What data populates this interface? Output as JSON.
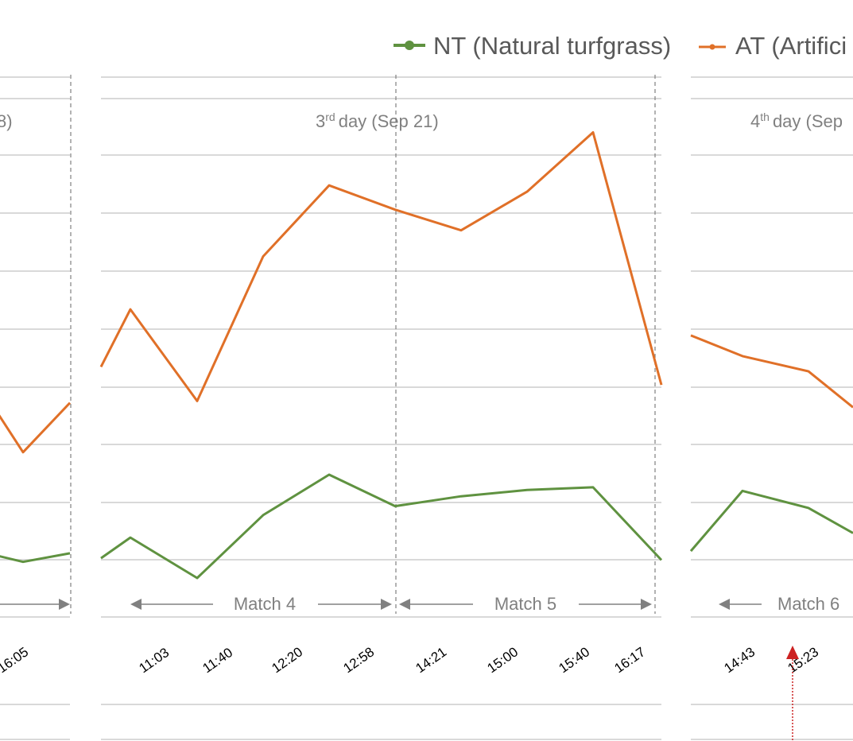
{
  "chart_data": {
    "type": "line",
    "legend": {
      "position": "top",
      "entries": [
        "NT (Natural turfgrass)",
        "AT (Artifici"
      ]
    },
    "colors": {
      "NT (Natural turfgrass)": "#5f9240",
      "AT (Artifici": "#e07028",
      "grid": "#d9d9d9",
      "divider": "#808080",
      "marker": "#cc2222"
    },
    "grid": true,
    "panels": [
      {
        "day_label": "8)",
        "x_labels": [
          "16:05"
        ],
        "matches": [],
        "series": [
          {
            "name": "NT (Natural turfgrass)",
            "values": [
              0.25,
              0.18,
              0.275
            ]
          },
          {
            "name": "AT (Artifici",
            "values": [
              1.85,
              1.4,
              1.95
            ]
          }
        ]
      },
      {
        "day_label": "3",
        "day_label_sup": "rd",
        "day_label_rest": "day (Sep 21)",
        "x_labels": [
          "11:03",
          "11:40",
          "12:20",
          "12:58",
          "14:21",
          "15:00",
          "15:40",
          "16:17"
        ],
        "matches": [
          "Match 4",
          "Match 5"
        ],
        "series": [
          {
            "name": "NT (Natural turfgrass)",
            "values": [
              0.22,
              0.45,
              0.0,
              0.7,
              1.15,
              0.8,
              0.91,
              0.98,
              1.01,
              0.2
            ]
          },
          {
            "name": "AT (Artifici",
            "values": [
              2.35,
              2.99,
              1.97,
              3.58,
              4.37,
              4.1,
              3.87,
              4.3,
              4.96,
              2.15
            ]
          }
        ]
      },
      {
        "day_label": "4",
        "day_label_sup": "th",
        "day_label_rest": "day (Sep",
        "x_labels": [
          "14:43",
          "15:23"
        ],
        "matches": [
          "Match 6"
        ],
        "series": [
          {
            "name": "NT (Natural turfgrass)",
            "values": [
              0.3,
              0.97,
              0.78,
              0.5
            ]
          },
          {
            "name": "AT (Artifici",
            "values": [
              2.7,
              2.47,
              2.3,
              1.9
            ]
          }
        ]
      }
    ]
  }
}
